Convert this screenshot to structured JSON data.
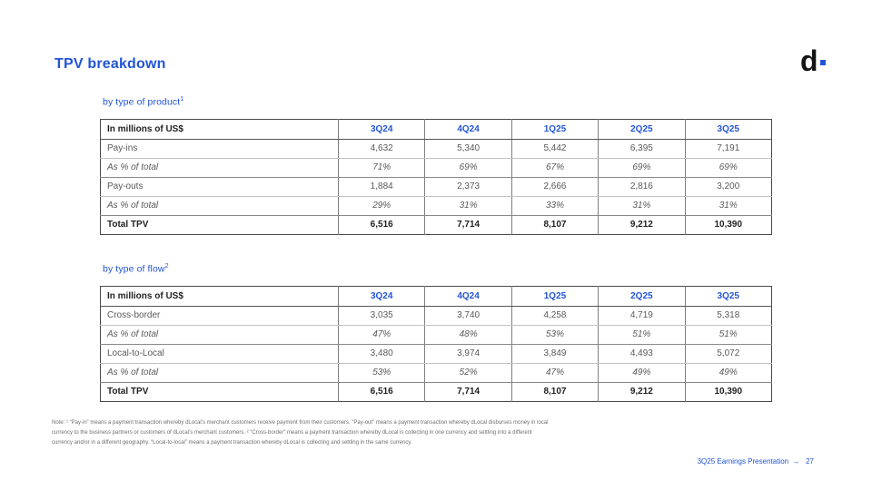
{
  "slide": {
    "title": "TPV breakdown",
    "logo": {
      "letter": "d"
    },
    "footer": {
      "label": "3Q25 Earnings Presentation",
      "arrow": "→",
      "page": "27"
    },
    "note_lines": [
      "Note: ¹ “Pay-in” means a payment transaction whereby dLocal’s merchant customers receive payment from their customers. “Pay-out” means a payment transaction whereby dLocal disburses money in local",
      "currency to the business partners or customers of dLocal’s merchant customers. ² “Cross-border” means a payment transaction whereby dLocal is collecting in one currency and settling into a different",
      "currency and/or in a different geography. “Local-to-local” means a payment transaction whereby dLocal is collecting and settling in the same currency."
    ]
  },
  "colors": {
    "accent_blue": "#2254d6",
    "body_gray": "#595959",
    "total_black": "#1f1f1f"
  },
  "tables": [
    {
      "id": "by-product",
      "subtitle": "by type of product",
      "superscript": "1",
      "columns": [
        "In millions of US$",
        "3Q24",
        "4Q24",
        "1Q25",
        "2Q25",
        "3Q25"
      ],
      "rows": [
        {
          "label": "Pay-ins",
          "style": "value",
          "values": [
            "4,632",
            "5,340",
            "5,442",
            "6,395",
            "7,191"
          ]
        },
        {
          "label": "As % of total",
          "style": "pct",
          "values": [
            "71%",
            "69%",
            "67%",
            "69%",
            "69%"
          ]
        },
        {
          "label": "Pay-outs",
          "style": "value",
          "values": [
            "1,884",
            "2,373",
            "2,666",
            "2,816",
            "3,200"
          ]
        },
        {
          "label": "As % of total",
          "style": "pct",
          "values": [
            "29%",
            "31%",
            "33%",
            "31%",
            "31%"
          ]
        },
        {
          "label": "Total TPV",
          "style": "total",
          "values": [
            "6,516",
            "7,714",
            "8,107",
            "9,212",
            "10,390"
          ]
        }
      ]
    },
    {
      "id": "by-flow",
      "subtitle": "by type of flow",
      "superscript": "2",
      "columns": [
        "In millions of US$",
        "3Q24",
        "4Q24",
        "1Q25",
        "2Q25",
        "3Q25"
      ],
      "rows": [
        {
          "label": "Cross-border",
          "style": "value",
          "values": [
            "3,035",
            "3,740",
            "4,258",
            "4,719",
            "5,318"
          ]
        },
        {
          "label": "As % of total",
          "style": "pct",
          "values": [
            "47%",
            "48%",
            "53%",
            "51%",
            "51%"
          ]
        },
        {
          "label": "Local-to-Local",
          "style": "value",
          "values": [
            "3,480",
            "3,974",
            "3,849",
            "4,493",
            "5,072"
          ]
        },
        {
          "label": "As % of total",
          "style": "pct",
          "values": [
            "53%",
            "52%",
            "47%",
            "49%",
            "49%"
          ]
        },
        {
          "label": "Total TPV",
          "style": "total",
          "values": [
            "6,516",
            "7,714",
            "8,107",
            "9,212",
            "10,390"
          ]
        }
      ]
    }
  ]
}
